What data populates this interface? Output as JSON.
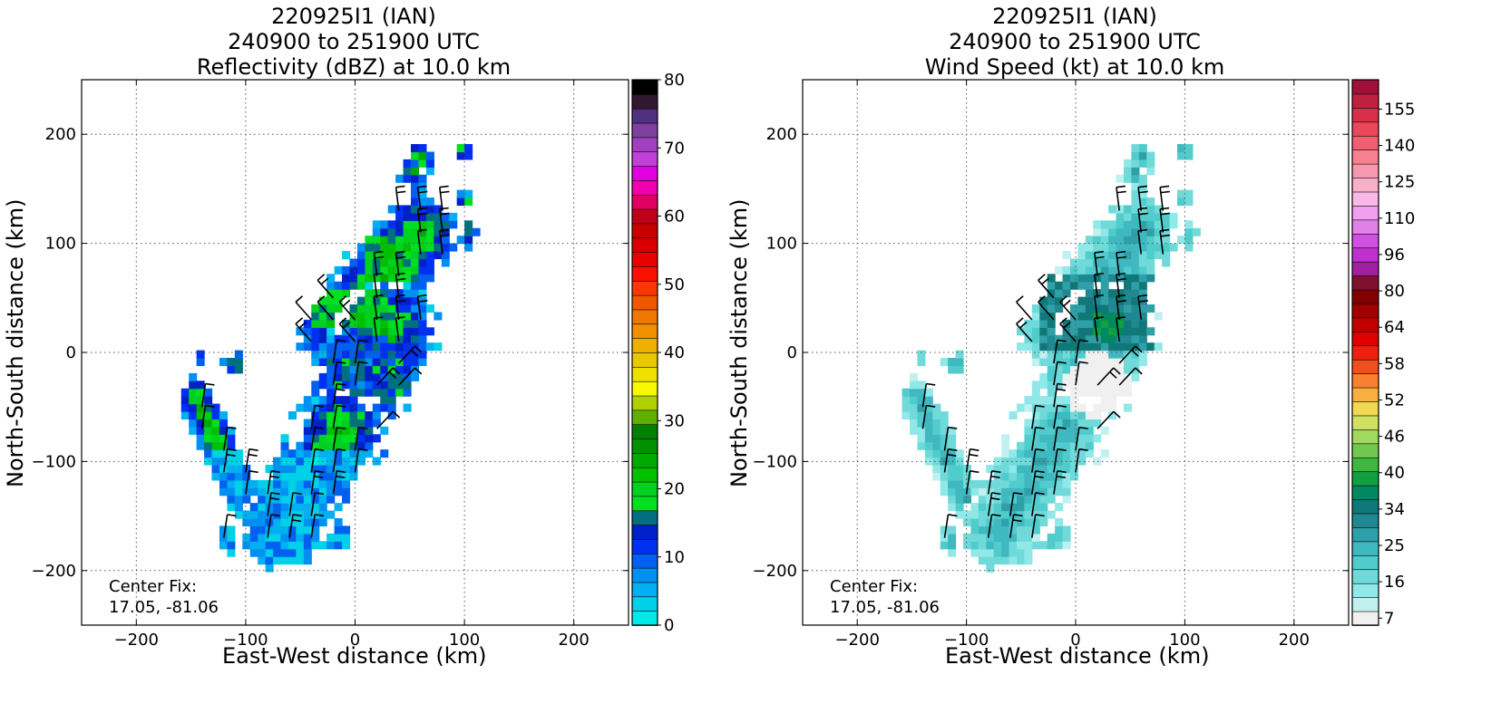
{
  "panels": [
    {
      "title": [
        "220925I1 (IAN)",
        "240900 to 251900 UTC",
        "Reflectivity (dBZ) at 10.0 km"
      ],
      "xlabel": "East-West distance (km)",
      "ylabel": "North-South distance (km)",
      "center_fix": [
        "Center Fix:",
        "17.05, -81.06"
      ],
      "colorbar": {
        "ticks": [
          "0",
          "10",
          "20",
          "30",
          "40",
          "50",
          "60",
          "70",
          "80"
        ],
        "colors": [
          "#00e8e8",
          "#00d0e8",
          "#00b0f0",
          "#0090f0",
          "#0060f0",
          "#0030f0",
          "#0020c8",
          "#007080",
          "#00e020",
          "#00d020",
          "#00c000",
          "#00a800",
          "#009000",
          "#008000",
          "#60b000",
          "#b0d000",
          "#f8f800",
          "#f0e000",
          "#e8c800",
          "#f0b000",
          "#f09000",
          "#f07800",
          "#f05800",
          "#f83800",
          "#f81000",
          "#e80000",
          "#d80000",
          "#c80000",
          "#c00018",
          "#e00060",
          "#f000b0",
          "#e000e0",
          "#c040d8",
          "#a040c0",
          "#8040a0",
          "#503080",
          "#301830",
          "#000000"
        ]
      }
    },
    {
      "title": [
        "220925I1 (IAN)",
        "240900 to 251900 UTC",
        "Wind Speed (kt) at 10.0 km"
      ],
      "xlabel": "East-West distance (km)",
      "ylabel": "North-South distance (km)",
      "center_fix": [
        "Center Fix:",
        "17.05, -81.06"
      ],
      "colorbar": {
        "ticks": [
          "7",
          "16",
          "25",
          "34",
          "40",
          "46",
          "52",
          "58",
          "64",
          "80",
          "96",
          "110",
          "125",
          "140",
          "155"
        ],
        "colors": [
          "#f0f0f0",
          "#c0f0f0",
          "#90e8e8",
          "#70dada",
          "#50cccc",
          "#40b8c0",
          "#30a0a8",
          "#208890",
          "#107878",
          "#008860",
          "#10a040",
          "#40b840",
          "#70c850",
          "#a0d860",
          "#d0e060",
          "#f0d850",
          "#f8b040",
          "#f88030",
          "#f05020",
          "#f02010",
          "#e00000",
          "#c00000",
          "#a00000",
          "#800000",
          "#801030",
          "#a020a0",
          "#c030d0",
          "#d050e0",
          "#e080e8",
          "#f0a0f0",
          "#f8b8e8",
          "#f8b0c8",
          "#f898b0",
          "#f88090",
          "#f06070",
          "#e84858",
          "#d83048",
          "#c02040",
          "#a01038"
        ]
      }
    }
  ],
  "x_ticks": [
    "−200",
    "−100",
    "0",
    "100",
    "200"
  ],
  "y_ticks": [
    "200",
    "100",
    "0",
    "−100",
    "−200"
  ],
  "chart_data": [
    {
      "type": "heatmap",
      "title": "220925I1 (IAN) 240900 to 251900 UTC Reflectivity (dBZ) at 10.0 km",
      "xlabel": "East-West distance (km)",
      "ylabel": "North-South distance (km)",
      "xlim": [
        -250,
        250
      ],
      "ylim": [
        -250,
        250
      ],
      "colorbar_range": [
        0,
        80
      ],
      "grid": true,
      "annotation": "Center Fix: 17.05, -81.06",
      "features": "wind barbs overlaid; echo band from (-150,-40) through (0,-50) to (100,190)"
    },
    {
      "type": "heatmap",
      "title": "220925I1 (IAN) 240900 to 251900 UTC Wind Speed (kt) at 10.0 km",
      "xlabel": "East-West distance (km)",
      "ylabel": "North-South distance (km)",
      "xlim": [
        -250,
        250
      ],
      "ylim": [
        -250,
        250
      ],
      "colorbar_ticks": [
        7,
        16,
        25,
        34,
        40,
        46,
        52,
        58,
        64,
        80,
        96,
        110,
        125,
        140,
        155
      ],
      "grid": true,
      "annotation": "Center Fix: 17.05, -81.06",
      "features": "wind barbs overlaid; max winds ~34 kt near (30,25)"
    }
  ]
}
